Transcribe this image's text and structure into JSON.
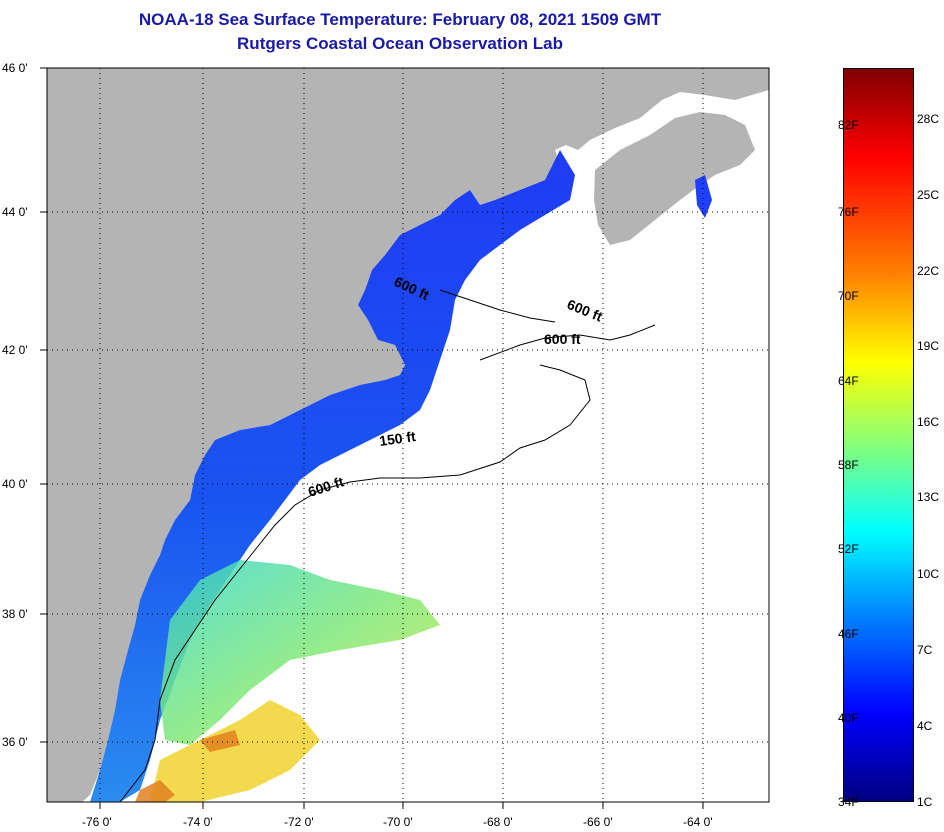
{
  "header": {
    "title": "NOAA-18 Sea Surface Temperature:  February 08, 2021 1509 GMT",
    "subtitle": "Rutgers Coastal Ocean Observation Lab"
  },
  "map": {
    "lat_labels": [
      "46 0'",
      "44 0'",
      "42 0'",
      "40 0'",
      "38 0'",
      "36 0'"
    ],
    "lon_labels": [
      "-76 0'",
      "-74 0'",
      "-72 0'",
      "-70 0'",
      "-68 0'",
      "-66 0'",
      "-64 0'"
    ],
    "lat_range": [
      35,
      46
    ],
    "lon_range": [
      -77,
      -63
    ],
    "contour_labels": [
      "600 ft",
      "600 ft",
      "600 ft",
      "150 ft",
      "600 ft"
    ],
    "colors": {
      "land": "#b4b4b4",
      "ocean_clear": "#ffffff",
      "grid": "#000000"
    }
  },
  "colorbar": {
    "fahrenheit_labels": [
      "82F",
      "76F",
      "70F",
      "64F",
      "58F",
      "52F",
      "46F",
      "40F",
      "34F"
    ],
    "celsius_labels": [
      "28C",
      "25C",
      "22C",
      "19C",
      "16C",
      "13C",
      "10C",
      "7C",
      "4C",
      "1C"
    ],
    "range_c": [
      1,
      30
    ],
    "range_f": [
      34,
      86
    ]
  }
}
